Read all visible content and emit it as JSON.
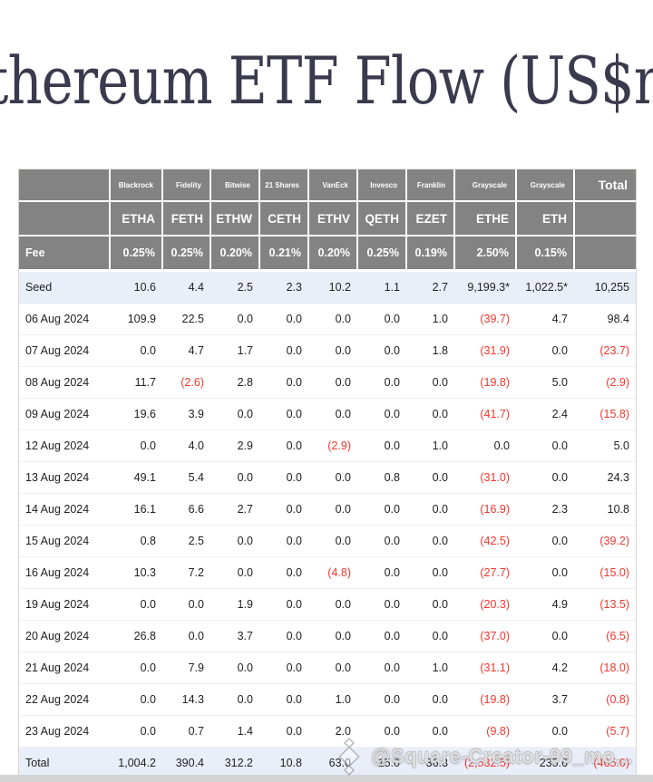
{
  "title": "Ethereum ETF Flow (US$m)",
  "watermark": {
    "icon": "diamond-icon",
    "text": "@Square-Creator-99_mo..."
  },
  "colors": {
    "title_text": "#3a3a4e",
    "header_bg": "#838383",
    "highlight_row_bg": "#e9eef9",
    "negative_red": "#f5352b",
    "body_text": "#212121"
  },
  "chart_data": {
    "type": "table",
    "title": "Ethereum ETF Flow (US$m)",
    "corner_label": "",
    "fee_row_label": "Fee",
    "total_column_label": "Total",
    "columns": [
      {
        "issuer": "Blackrock",
        "ticker": "ETHA",
        "fee": "0.25%"
      },
      {
        "issuer": "Fidelity",
        "ticker": "FETH",
        "fee": "0.25%"
      },
      {
        "issuer": "Bitwise",
        "ticker": "ETHW",
        "fee": "0.20%"
      },
      {
        "issuer": "21 Shares",
        "ticker": "CETH",
        "fee": "0.21%"
      },
      {
        "issuer": "VanEck",
        "ticker": "ETHV",
        "fee": "0.20%"
      },
      {
        "issuer": "Invesco",
        "ticker": "QETH",
        "fee": "0.25%"
      },
      {
        "issuer": "Franklin",
        "ticker": "EZET",
        "fee": "0.19%"
      },
      {
        "issuer": "Grayscale",
        "ticker": "ETHE",
        "fee": "2.50%"
      },
      {
        "issuer": "Grayscale",
        "ticker": "ETH",
        "fee": "0.15%"
      }
    ],
    "rows": [
      {
        "label": "Seed",
        "highlight": true,
        "values": [
          "10.6",
          "4.4",
          "2.5",
          "2.3",
          "10.2",
          "1.1",
          "2.7",
          "9,199.3*",
          "1,022.5*",
          "10,255"
        ]
      },
      {
        "label": "06 Aug 2024",
        "highlight": false,
        "values": [
          "109.9",
          "22.5",
          "0.0",
          "0.0",
          "0.0",
          "0.0",
          "1.0",
          "(39.7)",
          "4.7",
          "98.4"
        ]
      },
      {
        "label": "07 Aug 2024",
        "highlight": false,
        "values": [
          "0.0",
          "4.7",
          "1.7",
          "0.0",
          "0.0",
          "0.0",
          "1.8",
          "(31.9)",
          "0.0",
          "(23.7)"
        ]
      },
      {
        "label": "08 Aug 2024",
        "highlight": false,
        "values": [
          "11.7",
          "(2.6)",
          "2.8",
          "0.0",
          "0.0",
          "0.0",
          "0.0",
          "(19.8)",
          "5.0",
          "(2.9)"
        ]
      },
      {
        "label": "09 Aug 2024",
        "highlight": false,
        "values": [
          "19.6",
          "3.9",
          "0.0",
          "0.0",
          "0.0",
          "0.0",
          "0.0",
          "(41.7)",
          "2.4",
          "(15.8)"
        ]
      },
      {
        "label": "12 Aug 2024",
        "highlight": false,
        "values": [
          "0.0",
          "4.0",
          "2.9",
          "0.0",
          "(2.9)",
          "0.0",
          "1.0",
          "0.0",
          "0.0",
          "5.0"
        ]
      },
      {
        "label": "13 Aug 2024",
        "highlight": false,
        "values": [
          "49.1",
          "5.4",
          "0.0",
          "0.0",
          "0.0",
          "0.8",
          "0.0",
          "(31.0)",
          "0.0",
          "24.3"
        ]
      },
      {
        "label": "14 Aug 2024",
        "highlight": false,
        "values": [
          "16.1",
          "6.6",
          "2.7",
          "0.0",
          "0.0",
          "0.0",
          "0.0",
          "(16.9)",
          "2.3",
          "10.8"
        ]
      },
      {
        "label": "15 Aug 2024",
        "highlight": false,
        "values": [
          "0.8",
          "2.5",
          "0.0",
          "0.0",
          "0.0",
          "0.0",
          "0.0",
          "(42.5)",
          "0.0",
          "(39.2)"
        ]
      },
      {
        "label": "16 Aug 2024",
        "highlight": false,
        "values": [
          "10.3",
          "7.2",
          "0.0",
          "0.0",
          "(4.8)",
          "0.0",
          "0.0",
          "(27.7)",
          "0.0",
          "(15.0)"
        ]
      },
      {
        "label": "19 Aug 2024",
        "highlight": false,
        "values": [
          "0.0",
          "0.0",
          "1.9",
          "0.0",
          "0.0",
          "0.0",
          "0.0",
          "(20.3)",
          "4.9",
          "(13.5)"
        ]
      },
      {
        "label": "20 Aug 2024",
        "highlight": false,
        "values": [
          "26.8",
          "0.0",
          "3.7",
          "0.0",
          "0.0",
          "0.0",
          "0.0",
          "(37.0)",
          "0.0",
          "(6.5)"
        ]
      },
      {
        "label": "21 Aug 2024",
        "highlight": false,
        "values": [
          "0.0",
          "7.9",
          "0.0",
          "0.0",
          "0.0",
          "0.0",
          "1.0",
          "(31.1)",
          "4.2",
          "(18.0)"
        ]
      },
      {
        "label": "22 Aug 2024",
        "highlight": false,
        "values": [
          "0.0",
          "14.3",
          "0.0",
          "0.0",
          "1.0",
          "0.0",
          "0.0",
          "(19.8)",
          "3.7",
          "(0.8)"
        ]
      },
      {
        "label": "23 Aug 2024",
        "highlight": false,
        "values": [
          "0.0",
          "0.7",
          "1.4",
          "0.0",
          "2.0",
          "0.0",
          "0.0",
          "(9.8)",
          "0.0",
          "(5.7)"
        ]
      },
      {
        "label": "Total",
        "highlight": true,
        "values": [
          "1,004.2",
          "390.4",
          "312.2",
          "10.8",
          "63.0",
          "15.0",
          "36.3",
          "(2,532.5)",
          "235.6",
          "(465.0)"
        ]
      }
    ]
  }
}
